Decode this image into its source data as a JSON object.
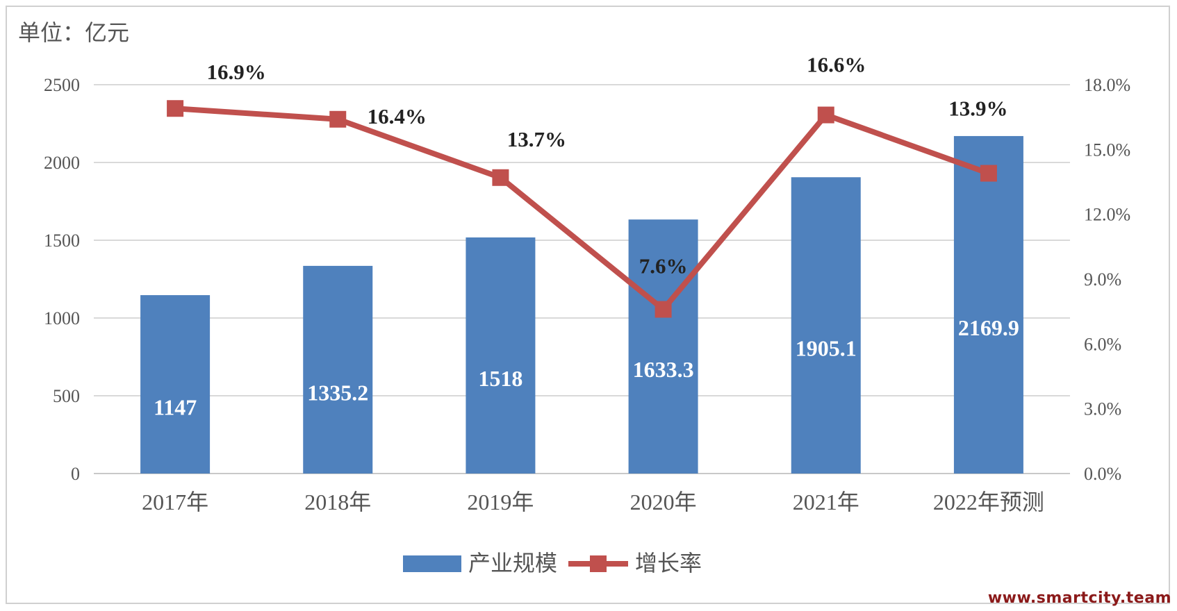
{
  "unit_label": "单位：亿元",
  "watermark": "www.smartcity.team",
  "chart_data": {
    "type": "bar",
    "categories": [
      "2017年",
      "2018年",
      "2019年",
      "2020年",
      "2021年",
      "2022年预测"
    ],
    "series": [
      {
        "name": "产业规模",
        "type": "bar",
        "axis": "left",
        "color": "#4f81bd",
        "values": [
          1147,
          1335.2,
          1518,
          1633.3,
          1905.1,
          2169.9
        ],
        "labels": [
          "1147",
          "1335.2",
          "1518",
          "1633.3",
          "1905.1",
          "2169.9"
        ]
      },
      {
        "name": "增长率",
        "type": "line",
        "axis": "right",
        "color": "#c0504d",
        "values": [
          16.9,
          16.4,
          13.7,
          7.6,
          16.6,
          13.9
        ],
        "labels": [
          "16.9%",
          "16.4%",
          "13.7%",
          "7.6%",
          "16.6%",
          "13.9%"
        ]
      }
    ],
    "y_left": {
      "min": 0,
      "max": 2500,
      "ticks": [
        "0",
        "500",
        "1000",
        "1500",
        "2000",
        "2500"
      ]
    },
    "y_right": {
      "min": 0,
      "max": 18,
      "ticks": [
        "0.0%",
        "3.0%",
        "6.0%",
        "9.0%",
        "12.0%",
        "15.0%",
        "18.0%"
      ]
    },
    "grid": true,
    "legend": "bottom"
  }
}
